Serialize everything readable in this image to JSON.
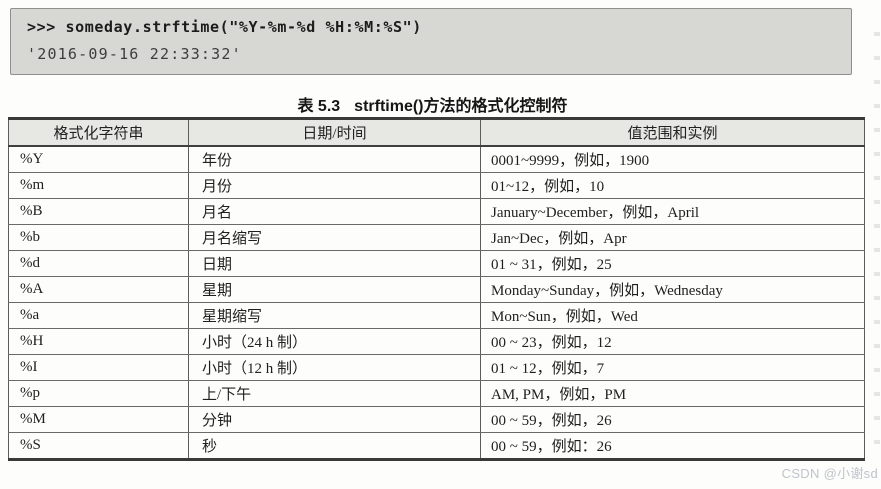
{
  "code_block": {
    "line1": ">>> someday.strftime(\"%Y-%m-%d %H:%M:%S\")",
    "line2": "'2016-09-16 22:33:32'"
  },
  "caption": {
    "label": "表 5.3",
    "text": "strftime()方法的格式化控制符"
  },
  "table": {
    "headers": [
      "格式化字符串",
      "日期/时间",
      "值范围和实例"
    ],
    "rows": [
      [
        "%Y",
        "年份",
        "0001~9999，例如，1900"
      ],
      [
        "%m",
        "月份",
        "01~12，例如，10"
      ],
      [
        "%B",
        "月名",
        "January~December，例如，April"
      ],
      [
        "%b",
        "月名缩写",
        "Jan~Dec，例如，Apr"
      ],
      [
        "%d",
        "日期",
        "01 ~ 31，例如，25"
      ],
      [
        "%A",
        "星期",
        "Monday~Sunday，例如，Wednesday"
      ],
      [
        "%a",
        "星期缩写",
        "Mon~Sun，例如，Wed"
      ],
      [
        "%H",
        "小时（24 h 制）",
        "00 ~ 23，例如，12"
      ],
      [
        "%I",
        "小时（12 h 制）",
        "01 ~ 12，例如，7"
      ],
      [
        "%p",
        "上/下午",
        "AM, PM，例如，PM"
      ],
      [
        "%M",
        "分钟",
        "00 ~ 59，例如，26"
      ],
      [
        "%S",
        "秒",
        "00 ~ 59，例如：26"
      ]
    ]
  },
  "watermark": "CSDN @小谢sd",
  "colors": {
    "code_background": "#d7d7d4",
    "code_border": "#8f8f8c",
    "table_border": "#5c5c5a",
    "header_background": "#e7e7e4",
    "watermark_text": "#bfc3ca",
    "page_background": "#fdfdfc"
  }
}
